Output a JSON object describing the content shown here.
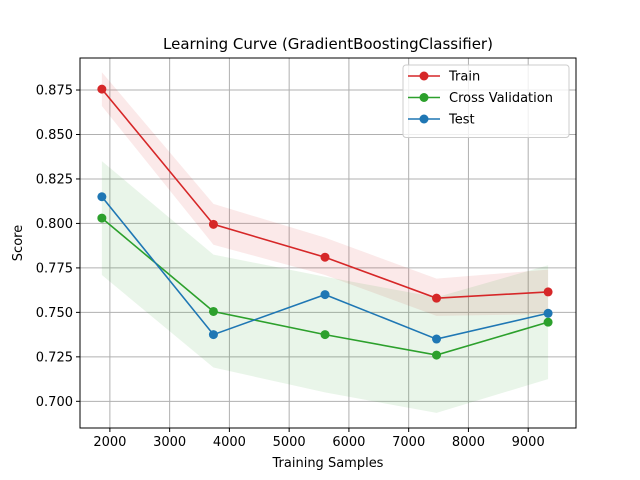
{
  "chart_data": {
    "type": "line",
    "title": "Learning Curve (GradientBoostingClassifier)",
    "xlabel": "Training Samples",
    "ylabel": "Score",
    "xlim": [
      1500,
      9800
    ],
    "ylim": [
      0.685,
      0.893
    ],
    "xticks": [
      2000,
      3000,
      4000,
      5000,
      6000,
      7000,
      8000,
      9000
    ],
    "xtick_labels": [
      "2000",
      "3000",
      "4000",
      "5000",
      "6000",
      "7000",
      "8000",
      "9000"
    ],
    "yticks": [
      0.7,
      0.725,
      0.75,
      0.775,
      0.8,
      0.825,
      0.85,
      0.875
    ],
    "ytick_labels": [
      "0.700",
      "0.725",
      "0.750",
      "0.775",
      "0.800",
      "0.825",
      "0.850",
      "0.875"
    ],
    "grid": true,
    "legend_position": "top-right",
    "x": [
      1866,
      3733,
      5600,
      7466,
      9333
    ],
    "series": [
      {
        "name": "Train",
        "color": "#d62728",
        "values": [
          0.8755,
          0.7995,
          0.781,
          0.758,
          0.7615
        ],
        "band_lower": [
          0.866,
          0.788,
          0.771,
          0.748,
          0.749
        ],
        "band_upper": [
          0.885,
          0.811,
          0.792,
          0.769,
          0.774
        ]
      },
      {
        "name": "Cross Validation",
        "color": "#2ca02c",
        "values": [
          0.803,
          0.7505,
          0.7375,
          0.726,
          0.7445
        ],
        "band_lower": [
          0.771,
          0.719,
          0.705,
          0.6935,
          0.7125
        ],
        "band_upper": [
          0.835,
          0.7825,
          0.77,
          0.7585,
          0.7765
        ]
      },
      {
        "name": "Test",
        "color": "#1f77b4",
        "values": [
          0.815,
          0.7375,
          0.76,
          0.735,
          0.7495
        ]
      }
    ]
  }
}
